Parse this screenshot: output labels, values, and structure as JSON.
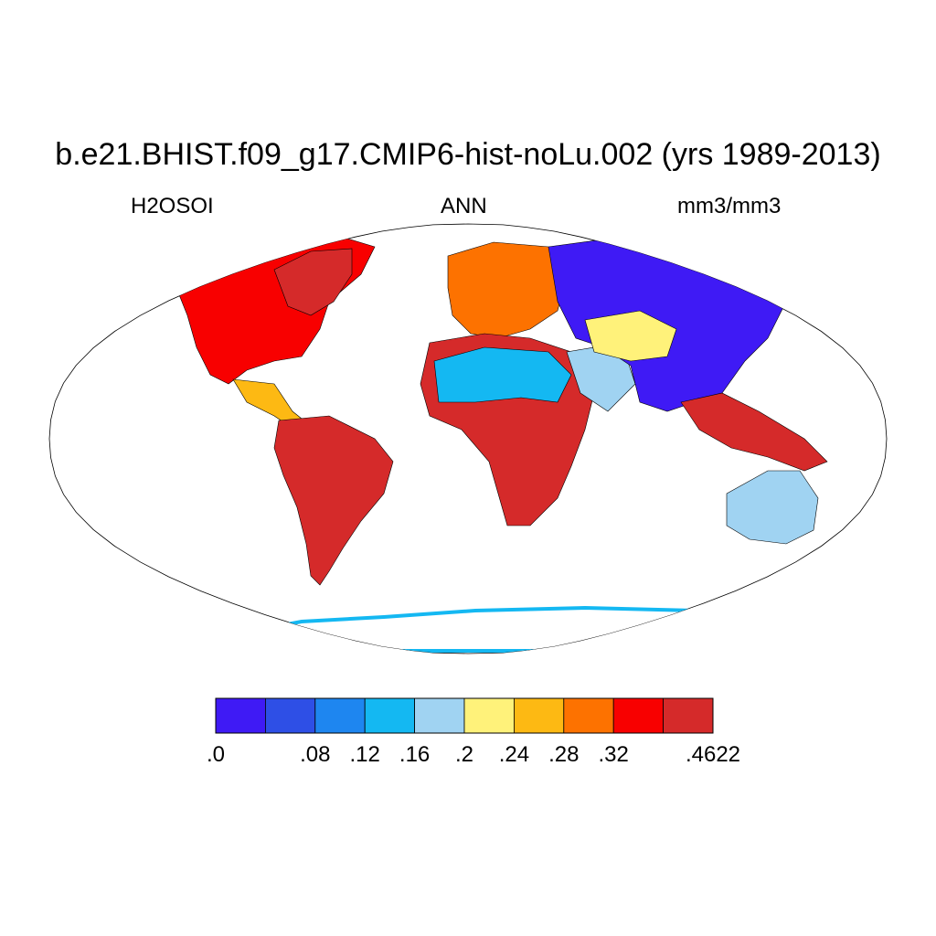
{
  "title": "b.e21.BHIST.f09_g17.CMIP6-hist-noLu.002 (yrs 1989-2013)",
  "left_label": "H2OSOI",
  "center_label": "ANN",
  "right_label": "mm3/mm3",
  "chart_data": {
    "type": "heatmap",
    "projection": "robinson",
    "variable": "H2OSOI",
    "season": "ANN",
    "units": "mm3/mm3",
    "colorbar": {
      "orientation": "horizontal",
      "placement": "bottom",
      "colors": [
        "#3f1af5",
        "#2e4fe6",
        "#1e86f0",
        "#14b8f2",
        "#a0d3f2",
        "#fff27a",
        "#fdb913",
        "#fd7200",
        "#f80000",
        "#d52a2a"
      ],
      "tick_labels": [
        ".0",
        ".08",
        ".12",
        ".16",
        ".2",
        ".24",
        ".28",
        ".32",
        ".4622"
      ],
      "tick_boundaries": [
        0,
        2,
        3,
        4,
        5,
        6,
        7,
        8,
        10
      ]
    },
    "regions": [
      {
        "name": "Amazon",
        "value_bin": 9
      },
      {
        "name": "Sahara",
        "value_bin": 3
      },
      {
        "name": "Congo",
        "value_bin": 9
      },
      {
        "name": "Arabia",
        "value_bin": 4
      },
      {
        "name": "Central Asia",
        "value_bin": 5
      },
      {
        "name": "Siberia",
        "value_bin": 0
      },
      {
        "name": "Australia interior",
        "value_bin": 4
      },
      {
        "name": "Eastern North America",
        "value_bin": 8
      },
      {
        "name": "Southeast Asia",
        "value_bin": 9
      },
      {
        "name": "Antarctica coast",
        "value_bin": 3
      }
    ]
  }
}
